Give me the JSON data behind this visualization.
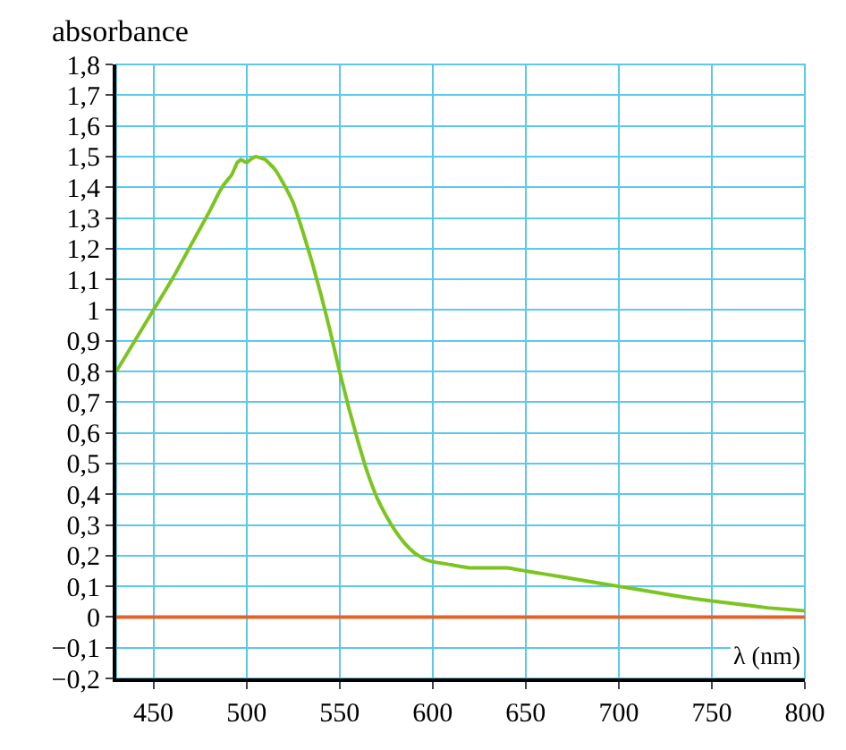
{
  "chart_data": {
    "type": "line",
    "ylabel": "absorbance",
    "xlabel": "λ (nm)",
    "xlim": [
      430,
      800
    ],
    "xticks": [
      450,
      500,
      550,
      600,
      650,
      700,
      750,
      800
    ],
    "ylim": [
      -0.2,
      1.8
    ],
    "yticks": [
      {
        "value": -0.2,
        "label": "−0,2"
      },
      {
        "value": -0.1,
        "label": "−0,1"
      },
      0,
      {
        "value": 0.1,
        "label": "0,1"
      },
      {
        "value": 0.2,
        "label": "0,2"
      },
      {
        "value": 0.3,
        "label": "0,3"
      },
      {
        "value": 0.4,
        "label": "0,4"
      },
      {
        "value": 0.5,
        "label": "0,5"
      },
      {
        "value": 0.6,
        "label": "0,6"
      },
      {
        "value": 0.7,
        "label": "0,7"
      },
      {
        "value": 0.8,
        "label": "0,8"
      },
      {
        "value": 0.9,
        "label": "0,9"
      },
      1,
      {
        "value": 1.1,
        "label": "1,1"
      },
      {
        "value": 1.2,
        "label": "1,2"
      },
      {
        "value": 1.3,
        "label": "1,3"
      },
      {
        "value": 1.4,
        "label": "1,4"
      },
      {
        "value": 1.5,
        "label": "1,5"
      },
      {
        "value": 1.6,
        "label": "1,6"
      },
      {
        "value": 1.7,
        "label": "1,7"
      },
      {
        "value": 1.8,
        "label": "1,8"
      }
    ],
    "grid": true,
    "marker": "none",
    "line_style": "solid",
    "x": [
      430,
      440,
      450,
      460,
      470,
      480,
      485,
      488,
      492,
      495,
      497,
      500,
      502,
      505,
      510,
      515,
      520,
      525,
      530,
      535,
      540,
      545,
      550,
      555,
      560,
      565,
      570,
      575,
      580,
      585,
      590,
      595,
      600,
      610,
      620,
      640,
      650,
      660,
      680,
      700,
      720,
      740,
      760,
      780,
      800
    ],
    "series": [
      {
        "color": "#7cc520",
        "values": [
          0.8,
          0.9,
          1.0,
          1.1,
          1.21,
          1.32,
          1.38,
          1.41,
          1.44,
          1.48,
          1.49,
          1.48,
          1.49,
          1.5,
          1.49,
          1.46,
          1.41,
          1.35,
          1.26,
          1.16,
          1.05,
          0.93,
          0.8,
          0.68,
          0.57,
          0.47,
          0.39,
          0.33,
          0.28,
          0.24,
          0.21,
          0.19,
          0.18,
          0.17,
          0.16,
          0.16,
          0.15,
          0.14,
          0.12,
          0.1,
          0.08,
          0.06,
          0.045,
          0.03,
          0.02
        ]
      }
    ],
    "ref_lines": [
      {
        "axis": "y",
        "value": 0,
        "label": null,
        "color": "#e0642a",
        "line_style": "solid"
      }
    ]
  }
}
